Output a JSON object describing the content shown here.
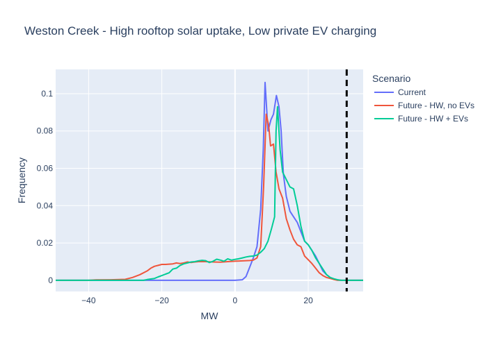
{
  "chart_data": {
    "type": "line",
    "title": "Weston Creek - High rooftop solar uptake, Low private EV charging",
    "xlabel": "MW",
    "ylabel": "Frequency",
    "xlim": [
      -49,
      35
    ],
    "ylim": [
      -0.006,
      0.113
    ],
    "xticks": [
      -40,
      -20,
      0,
      20
    ],
    "xtick_labels": [
      "−40",
      "−20",
      "0",
      "20"
    ],
    "yticks": [
      0,
      0.02,
      0.04,
      0.06,
      0.08,
      0.1
    ],
    "ytick_labels": [
      "0",
      "0.02",
      "0.04",
      "0.06",
      "0.08",
      "0.1"
    ],
    "grid": true,
    "legend": {
      "title": "Scenario",
      "position": "right"
    },
    "reference_line": {
      "x": 30.5,
      "style": "dashed",
      "color": "#000000"
    },
    "series": [
      {
        "name": "Current",
        "color": "#636efa",
        "points": [
          [
            -49,
            0
          ],
          [
            0,
            0
          ],
          [
            2,
            0.0003
          ],
          [
            3,
            0.002
          ],
          [
            4,
            0.007
          ],
          [
            5,
            0.012
          ],
          [
            6,
            0.018
          ],
          [
            7,
            0.038
          ],
          [
            7.7,
            0.07
          ],
          [
            8.2,
            0.106
          ],
          [
            9,
            0.08
          ],
          [
            9.8,
            0.086
          ],
          [
            10.5,
            0.089
          ],
          [
            11.3,
            0.099
          ],
          [
            12,
            0.093
          ],
          [
            12.6,
            0.08
          ],
          [
            13.2,
            0.057
          ],
          [
            14,
            0.045
          ],
          [
            15,
            0.037
          ],
          [
            16,
            0.034
          ],
          [
            17,
            0.031
          ],
          [
            18,
            0.026
          ],
          [
            19,
            0.021
          ],
          [
            20,
            0.019
          ],
          [
            21,
            0.016
          ],
          [
            22,
            0.013
          ],
          [
            23,
            0.009
          ],
          [
            24,
            0.005
          ],
          [
            25,
            0.003
          ],
          [
            26,
            0.0015
          ],
          [
            27,
            0.0007
          ],
          [
            28,
            0.0002
          ],
          [
            29,
            0
          ],
          [
            35,
            0
          ]
        ]
      },
      {
        "name": "Future - HW, no EVs",
        "color": "#ef553b",
        "points": [
          [
            -49,
            0
          ],
          [
            -40,
            0
          ],
          [
            -38,
            0.0002
          ],
          [
            -34,
            0.0003
          ],
          [
            -30,
            0.0005
          ],
          [
            -28,
            0.0015
          ],
          [
            -26,
            0.003
          ],
          [
            -24,
            0.005
          ],
          [
            -23,
            0.0065
          ],
          [
            -22,
            0.0075
          ],
          [
            -21,
            0.008
          ],
          [
            -20,
            0.0085
          ],
          [
            -19,
            0.0085
          ],
          [
            -17,
            0.0088
          ],
          [
            -16,
            0.0093
          ],
          [
            -15,
            0.009
          ],
          [
            -14,
            0.0093
          ],
          [
            -13,
            0.0098
          ],
          [
            -12,
            0.0095
          ],
          [
            -11,
            0.0098
          ],
          [
            -10,
            0.01
          ],
          [
            -8,
            0.01
          ],
          [
            -6,
            0.0098
          ],
          [
            -4,
            0.0097
          ],
          [
            -2,
            0.01
          ],
          [
            0,
            0.0102
          ],
          [
            2,
            0.0104
          ],
          [
            4,
            0.0106
          ],
          [
            5,
            0.0108
          ],
          [
            6,
            0.012
          ],
          [
            7,
            0.018
          ],
          [
            7.8,
            0.05
          ],
          [
            8.5,
            0.089
          ],
          [
            9.2,
            0.083
          ],
          [
            9.7,
            0.072
          ],
          [
            10.5,
            0.073
          ],
          [
            11.2,
            0.058
          ],
          [
            12,
            0.049
          ],
          [
            13,
            0.044
          ],
          [
            14,
            0.033
          ],
          [
            15,
            0.027
          ],
          [
            16,
            0.022
          ],
          [
            17,
            0.019
          ],
          [
            18,
            0.018
          ],
          [
            19,
            0.013
          ],
          [
            20,
            0.011
          ],
          [
            21,
            0.009
          ],
          [
            22,
            0.0065
          ],
          [
            23,
            0.004
          ],
          [
            24,
            0.0025
          ],
          [
            25,
            0.0015
          ],
          [
            26,
            0.001
          ],
          [
            27,
            0.0004
          ],
          [
            28,
            0
          ],
          [
            35,
            0
          ]
        ]
      },
      {
        "name": "Future - HW + EVs",
        "color": "#00cc96",
        "points": [
          [
            -49,
            0
          ],
          [
            -25,
            0
          ],
          [
            -24,
            0.0004
          ],
          [
            -22,
            0.001
          ],
          [
            -21,
            0.0018
          ],
          [
            -20,
            0.0025
          ],
          [
            -19,
            0.0033
          ],
          [
            -18,
            0.004
          ],
          [
            -17,
            0.006
          ],
          [
            -16,
            0.0065
          ],
          [
            -15,
            0.008
          ],
          [
            -14,
            0.0088
          ],
          [
            -13,
            0.0093
          ],
          [
            -12,
            0.0098
          ],
          [
            -11,
            0.01
          ],
          [
            -10,
            0.0104
          ],
          [
            -9,
            0.0107
          ],
          [
            -8,
            0.0105
          ],
          [
            -7,
            0.0095
          ],
          [
            -6,
            0.0102
          ],
          [
            -5,
            0.0113
          ],
          [
            -4,
            0.0108
          ],
          [
            -3,
            0.0102
          ],
          [
            -2,
            0.0115
          ],
          [
            -1,
            0.0108
          ],
          [
            0,
            0.0112
          ],
          [
            1,
            0.0115
          ],
          [
            2,
            0.012
          ],
          [
            3,
            0.0125
          ],
          [
            4,
            0.0128
          ],
          [
            5,
            0.013
          ],
          [
            6,
            0.0135
          ],
          [
            7,
            0.015
          ],
          [
            8,
            0.017
          ],
          [
            9,
            0.021
          ],
          [
            10,
            0.028
          ],
          [
            10.8,
            0.034
          ],
          [
            11.2,
            0.08
          ],
          [
            11.6,
            0.093
          ],
          [
            12.3,
            0.07
          ],
          [
            13,
            0.058
          ],
          [
            14,
            0.054
          ],
          [
            15,
            0.05
          ],
          [
            16,
            0.049
          ],
          [
            17,
            0.04
          ],
          [
            18,
            0.029
          ],
          [
            19,
            0.021
          ],
          [
            20,
            0.019
          ],
          [
            21,
            0.016
          ],
          [
            22,
            0.012
          ],
          [
            23,
            0.009
          ],
          [
            24,
            0.006
          ],
          [
            25,
            0.003
          ],
          [
            26,
            0.0015
          ],
          [
            27,
            0.0008
          ],
          [
            28,
            0.0003
          ],
          [
            29,
            0
          ],
          [
            35,
            0
          ]
        ]
      }
    ]
  }
}
